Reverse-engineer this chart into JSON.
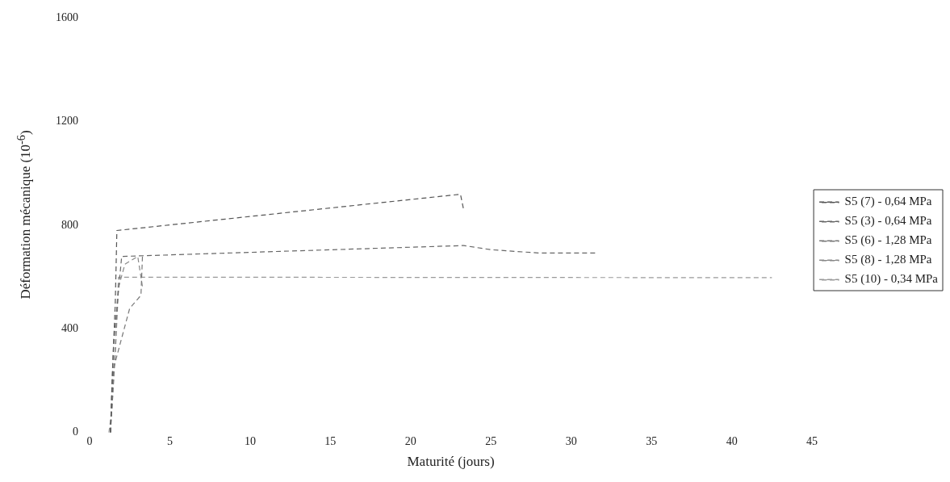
{
  "chart_data": {
    "type": "line",
    "xlabel": "Maturité (jours)",
    "ylabel": "Déformation mécanique (10$^{-6}$)",
    "xlim": [
      0,
      45
    ],
    "xticks": [
      0,
      5,
      10,
      15,
      20,
      25,
      30,
      35,
      40,
      45
    ],
    "ylim": [
      0,
      1600
    ],
    "yticks": [
      0,
      400,
      800,
      1200,
      1600
    ],
    "grid": false,
    "legend": "right",
    "marker": "none",
    "line_style": "dashed",
    "series": [
      {
        "name": "S5 (7) - 0,64 MPa",
        "color": "#555555",
        "x": [
          1.3,
          1.4,
          1.6,
          1.7,
          23.1,
          23.3
        ],
        "values": [
          0,
          200,
          500,
          780,
          920,
          860
        ]
      },
      {
        "name": "S5 (3) - 0,64 MPa",
        "color": "#666666",
        "x": [
          1.3,
          1.5,
          2.0,
          23.3,
          25,
          28,
          31.5
        ],
        "values": [
          0,
          350,
          680,
          722,
          706,
          693,
          693
        ]
      },
      {
        "name": "S5 (6) - 1,28 MPa",
        "color": "#777777",
        "x": [
          1.3,
          1.5,
          2.5,
          3.2,
          3.3
        ],
        "values": [
          0,
          250,
          480,
          530,
          690
        ]
      },
      {
        "name": "S5 (8) - 1,28 MPa",
        "color": "#888888",
        "x": [
          1.3,
          1.6,
          1.8,
          2.2,
          3.0,
          3.3
        ],
        "values": [
          0,
          300,
          560,
          650,
          680,
          560
        ]
      },
      {
        "name": "S5 (10) - 0,34 MPa",
        "color": "#999999",
        "x": [
          1.2,
          1.4,
          1.8,
          42.5
        ],
        "values": [
          0,
          90,
          600,
          598
        ]
      }
    ]
  }
}
